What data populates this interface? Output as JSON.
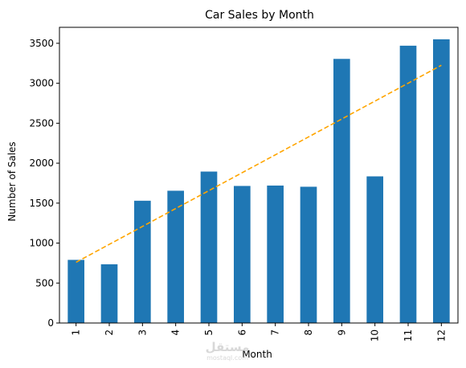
{
  "chart_data": {
    "type": "bar",
    "title": "Car Sales by Month",
    "xlabel": "Month",
    "ylabel": "Number of Sales",
    "categories": [
      "1",
      "2",
      "3",
      "4",
      "5",
      "6",
      "7",
      "8",
      "9",
      "10",
      "11",
      "12"
    ],
    "values": [
      790,
      735,
      1530,
      1655,
      1895,
      1715,
      1720,
      1705,
      3305,
      1835,
      3470,
      3550
    ],
    "trendline": {
      "start": 760,
      "end": 3225,
      "style": "dashed",
      "color": "#ffa500"
    },
    "ylim": [
      0,
      3700
    ],
    "yticks": [
      0,
      500,
      1000,
      1500,
      2000,
      2500,
      3000,
      3500
    ],
    "grid": false,
    "legend": "none",
    "bar_color": "#1f77b4"
  },
  "watermark": {
    "text_top": "مستقل",
    "text_bottom": "mostaql.com"
  }
}
